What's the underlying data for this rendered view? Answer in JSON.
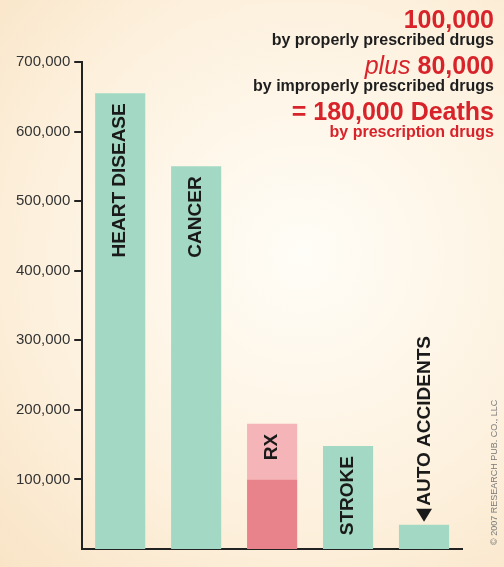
{
  "chart_data": {
    "type": "bar",
    "categories": [
      "HEART DISEASE",
      "CANCER",
      "RX",
      "STROKE",
      "AUTO ACCIDENTS"
    ],
    "series": [
      {
        "values": [
          655000,
          550000,
          100000,
          148000,
          35000
        ],
        "colors": [
          "#a3d9c4",
          "#a3d9c4",
          "#e9838b",
          "#a3d9c4",
          "#a3d9c4"
        ]
      },
      {
        "values": [
          null,
          null,
          80000,
          null,
          null
        ],
        "color": "#f5b5b8"
      }
    ],
    "stacked": true,
    "ylim": [
      0,
      700000
    ],
    "yticks": [
      {
        "value": 100000,
        "label": "100,000"
      },
      {
        "value": 200000,
        "label": "200,000"
      },
      {
        "value": 300000,
        "label": "300,000"
      },
      {
        "value": 400000,
        "label": "400,000"
      },
      {
        "value": 500000,
        "label": "500,000"
      },
      {
        "value": 600000,
        "label": "600,000"
      },
      {
        "value": 700000,
        "label": "700,000"
      }
    ],
    "grid": false,
    "tick_labels": "y",
    "annotations": [
      "100,000",
      "by properly prescribed drugs",
      "plus 80,000",
      "by improperly prescribed drugs",
      "= 180,000 Deaths",
      "by prescription drugs"
    ],
    "credit": "© 2007 RESEARCH PUB. CO., LLC"
  }
}
